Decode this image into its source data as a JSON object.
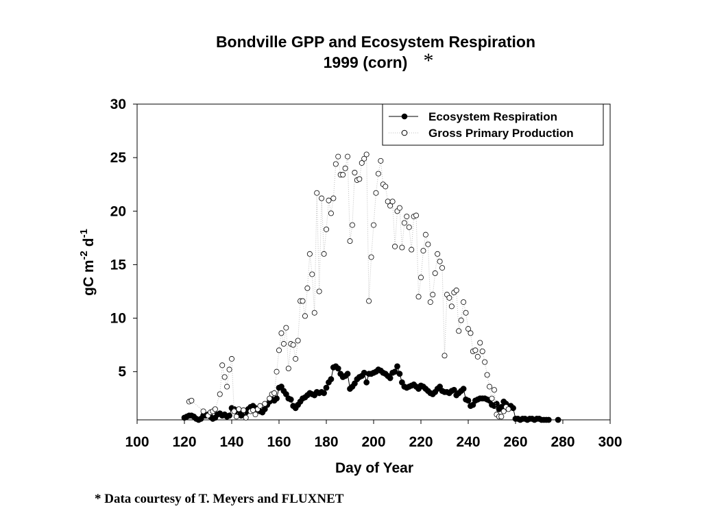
{
  "chart_data": {
    "type": "scatter",
    "title": "Bondville GPP and Ecosystem Respiration",
    "subtitle": "1999 (corn)",
    "title_mark": "*",
    "footnote": "* Data courtesy of T. Meyers and FLUXNET",
    "x_label": "Day of Year",
    "y_label": [
      "gC m",
      "-2",
      " d",
      "-1"
    ],
    "xlim": [
      100,
      300
    ],
    "xticks": [
      100,
      120,
      140,
      160,
      180,
      200,
      220,
      240,
      260,
      280,
      300
    ],
    "ylim": [
      0.5,
      30
    ],
    "yticks": [
      5,
      10,
      15,
      20,
      25,
      30
    ],
    "legend": "upper right",
    "series": [
      {
        "name": "Ecosystem Respiration",
        "color": "#000000",
        "marker": "filled",
        "line": "solid",
        "x": [
          120,
          121,
          122,
          123,
          124,
          125,
          126,
          127,
          128,
          129,
          130,
          131,
          132,
          133,
          134,
          135,
          136,
          137,
          138,
          139,
          140,
          141,
          142,
          143,
          144,
          145,
          146,
          147,
          148,
          149,
          150,
          151,
          152,
          153,
          154,
          155,
          156,
          157,
          158,
          159,
          160,
          161,
          162,
          163,
          164,
          165,
          166,
          167,
          168,
          169,
          170,
          171,
          172,
          173,
          174,
          175,
          176,
          177,
          178,
          179,
          180,
          181,
          182,
          183,
          184,
          185,
          186,
          187,
          188,
          189,
          190,
          191,
          192,
          193,
          194,
          195,
          196,
          197,
          198,
          199,
          200,
          201,
          202,
          203,
          204,
          205,
          206,
          207,
          208,
          209,
          210,
          211,
          212,
          213,
          214,
          215,
          216,
          217,
          218,
          219,
          220,
          221,
          222,
          223,
          224,
          225,
          226,
          227,
          228,
          229,
          230,
          231,
          232,
          233,
          234,
          235,
          236,
          237,
          238,
          239,
          240,
          241,
          242,
          243,
          244,
          245,
          246,
          247,
          248,
          249,
          250,
          251,
          252,
          253,
          254,
          255,
          256,
          257,
          258,
          259,
          260,
          261,
          262,
          263,
          264,
          265,
          266,
          267,
          268,
          269,
          270,
          271,
          272,
          273,
          274,
          278
        ],
        "values": [
          0.7,
          0.8,
          0.9,
          0.9,
          0.8,
          0.6,
          0.5,
          0.6,
          0.9,
          0.9,
          1.0,
          0.8,
          0.6,
          0.7,
          1.0,
          1.1,
          0.9,
          1.0,
          0.8,
          0.9,
          1.6,
          1.5,
          1.3,
          1.1,
          0.9,
          1.1,
          1.2,
          1.5,
          1.7,
          1.8,
          1.6,
          1.5,
          1.3,
          1.2,
          1.5,
          1.9,
          2.2,
          2.4,
          2.3,
          2.5,
          3.5,
          3.6,
          3.2,
          2.9,
          2.5,
          2.4,
          1.8,
          1.6,
          1.9,
          2.2,
          2.5,
          2.6,
          2.8,
          3.0,
          2.9,
          2.8,
          3.1,
          3.0,
          3.1,
          3.0,
          3.5,
          4.0,
          4.3,
          5.4,
          5.5,
          5.3,
          4.8,
          4.5,
          4.6,
          4.8,
          3.4,
          3.6,
          3.9,
          4.3,
          4.5,
          4.6,
          4.9,
          4.0,
          4.8,
          4.8,
          4.9,
          5.0,
          5.2,
          5.1,
          4.9,
          4.8,
          4.6,
          4.4,
          4.9,
          5.0,
          5.5,
          4.8,
          4.0,
          3.6,
          3.5,
          3.6,
          3.7,
          3.8,
          3.6,
          3.4,
          3.7,
          3.6,
          3.4,
          3.2,
          3.0,
          2.9,
          3.1,
          3.4,
          3.6,
          3.2,
          3.1,
          3.1,
          3.0,
          3.2,
          3.3,
          2.8,
          3.0,
          3.2,
          3.4,
          2.4,
          2.3,
          1.8,
          1.9,
          2.3,
          2.4,
          2.5,
          2.5,
          2.5,
          2.4,
          2.3,
          1.9,
          1.8,
          2.0,
          1.5,
          1.7,
          2.2,
          2.0,
          1.7,
          1.8,
          1.6,
          0.6,
          0.6,
          0.5,
          0.6,
          0.6,
          0.5,
          0.6,
          0.6,
          0.5,
          0.6,
          0.6,
          0.5,
          0.5,
          0.5,
          0.5,
          0.5
        ]
      },
      {
        "name": "Gross Primary Production",
        "color": "#000000",
        "marker": "open",
        "line": "dotted",
        "x": [
          122,
          123,
          128,
          130,
          131,
          132,
          133,
          135,
          136,
          137,
          138,
          139,
          140,
          141,
          142,
          143,
          145,
          146,
          148,
          149,
          150,
          151,
          152,
          154,
          156,
          157,
          158,
          159,
          160,
          161,
          162,
          163,
          164,
          165,
          166,
          167,
          168,
          169,
          170,
          171,
          172,
          173,
          174,
          175,
          176,
          177,
          178,
          179,
          180,
          181,
          182,
          183,
          184,
          185,
          186,
          187,
          188,
          189,
          190,
          191,
          192,
          193,
          194,
          195,
          196,
          197,
          198,
          199,
          200,
          201,
          202,
          203,
          204,
          205,
          206,
          207,
          208,
          209,
          210,
          211,
          212,
          213,
          214,
          215,
          216,
          217,
          218,
          219,
          220,
          221,
          222,
          223,
          224,
          225,
          226,
          227,
          228,
          229,
          230,
          231,
          232,
          233,
          234,
          235,
          236,
          237,
          238,
          239,
          240,
          241,
          242,
          243,
          244,
          245,
          246,
          247,
          248,
          249,
          250,
          251,
          252,
          253,
          254,
          255,
          256,
          257
        ],
        "values": [
          2.2,
          2.3,
          1.3,
          0.9,
          1.2,
          1.3,
          1.5,
          2.9,
          5.6,
          4.5,
          3.6,
          5.2,
          6.2,
          1.3,
          0.8,
          1.5,
          1.4,
          0.7,
          1.3,
          1.4,
          1.0,
          1.5,
          1.8,
          2.0,
          2.5,
          2.9,
          3.0,
          5.0,
          7.0,
          8.6,
          7.6,
          9.1,
          5.3,
          7.6,
          7.5,
          6.2,
          7.9,
          11.6,
          11.6,
          10.2,
          12.8,
          16.0,
          14.1,
          10.5,
          21.7,
          12.5,
          21.2,
          16.0,
          18.3,
          21.0,
          19.8,
          21.2,
          24.4,
          25.1,
          23.4,
          23.4,
          24.0,
          25.1,
          17.2,
          18.7,
          23.6,
          22.9,
          23.0,
          24.5,
          24.9,
          25.3,
          11.6,
          15.7,
          18.7,
          21.7,
          23.5,
          24.7,
          22.5,
          22.3,
          20.9,
          20.5,
          20.9,
          16.7,
          20.0,
          20.3,
          16.6,
          18.9,
          19.5,
          18.5,
          16.4,
          19.5,
          19.6,
          12.0,
          13.8,
          16.3,
          17.8,
          16.9,
          11.5,
          12.2,
          14.2,
          16.0,
          15.3,
          14.7,
          6.5,
          12.2,
          11.9,
          11.1,
          12.4,
          12.6,
          8.8,
          9.8,
          11.5,
          10.5,
          9.0,
          8.6,
          6.9,
          7.0,
          6.4,
          7.7,
          6.9,
          5.9,
          4.7,
          3.6,
          2.5,
          3.3,
          1.0,
          0.8,
          0.8,
          1.3,
          1.7,
          1.5
        ]
      }
    ]
  }
}
